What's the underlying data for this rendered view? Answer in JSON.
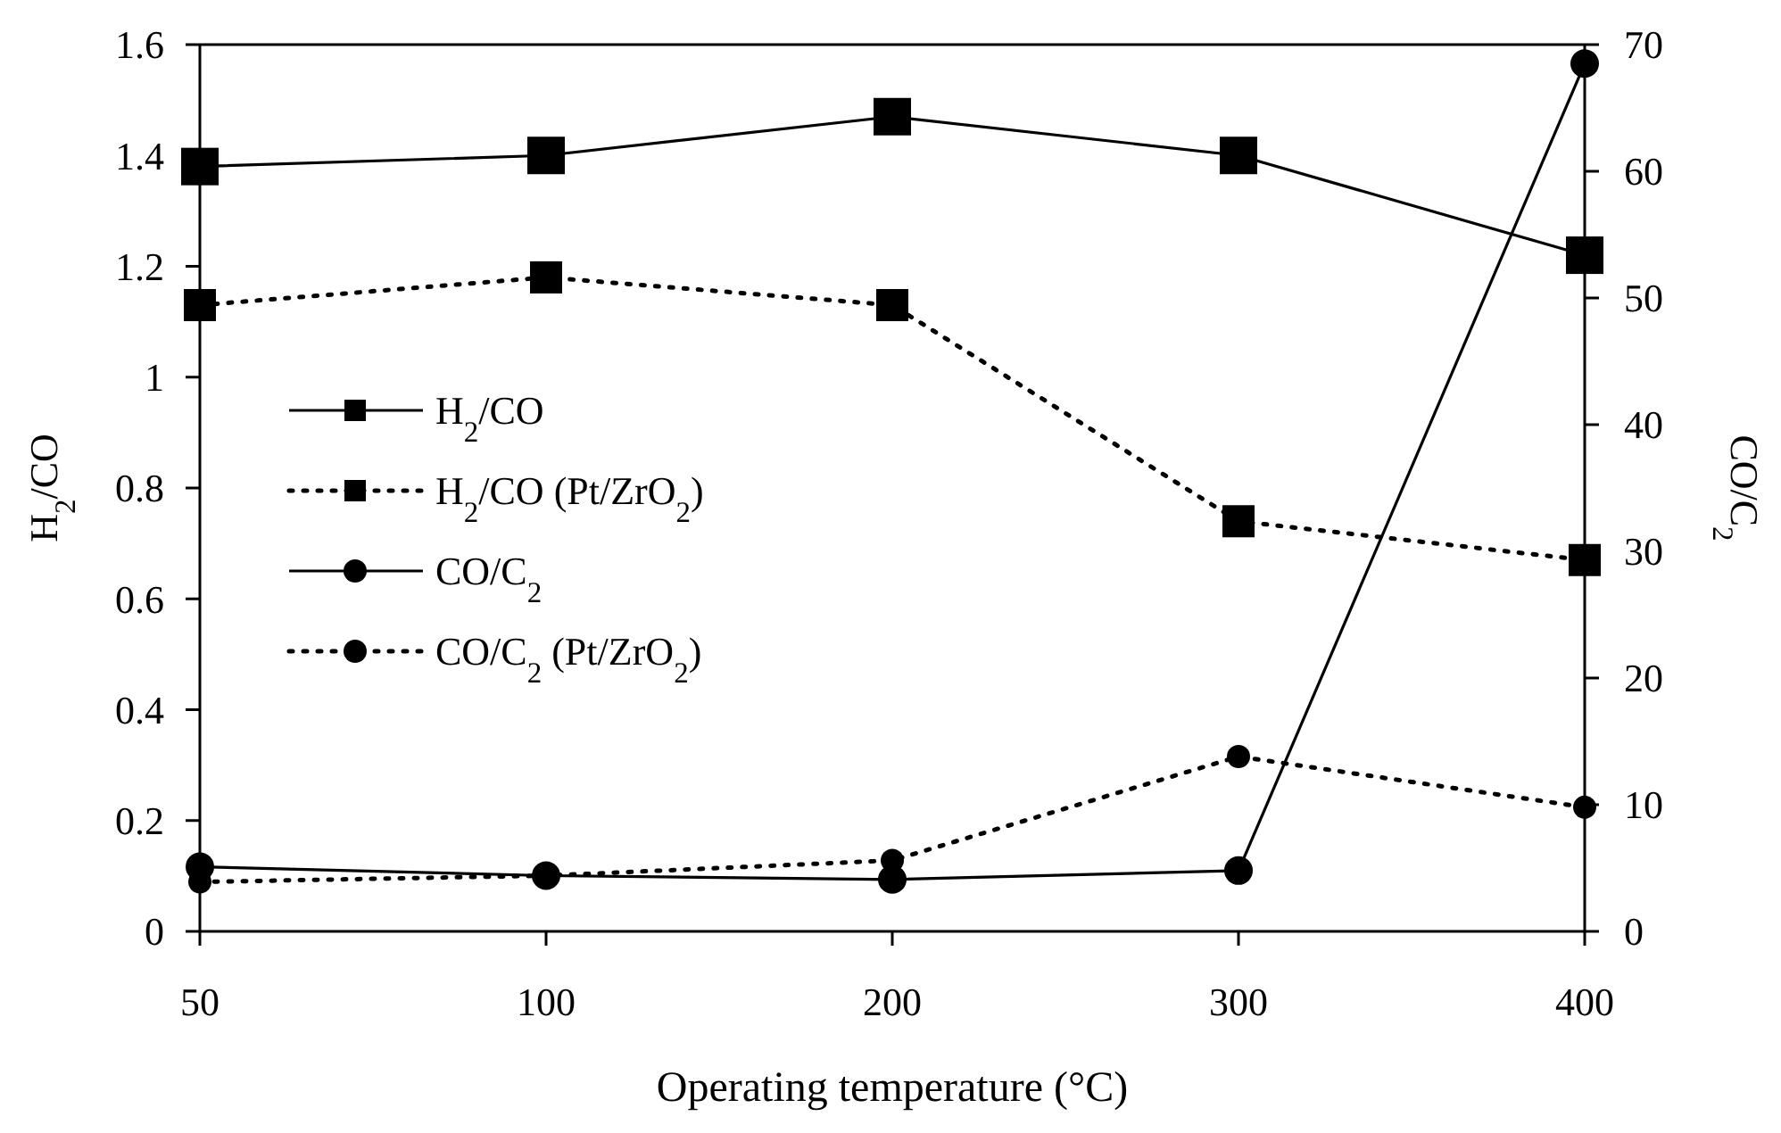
{
  "chart_data": {
    "type": "line",
    "xlabel": "Operating temperature (°C)",
    "ylabel": "H$_{2}$/CO",
    "y2label": "CO/C$_{2}$",
    "categories": [
      "50",
      "100",
      "200",
      "300",
      "400"
    ],
    "ylim": [
      0,
      1.6
    ],
    "yticks": [
      {
        "value": 0,
        "label": "0"
      },
      {
        "value": 0.2,
        "label": "0.2"
      },
      {
        "value": 0.4,
        "label": "0.4"
      },
      {
        "value": 0.6,
        "label": "0.6"
      },
      {
        "value": 0.8,
        "label": "0.8"
      },
      {
        "value": 1,
        "label": "1"
      },
      {
        "value": 1.2,
        "label": "1.2"
      },
      {
        "value": 1.4,
        "label": "1.4"
      },
      {
        "value": 1.6,
        "label": "1.6"
      }
    ],
    "y2lim": [
      0,
      70
    ],
    "y2ticks": [
      0,
      10,
      20,
      30,
      40,
      50,
      60,
      70
    ],
    "series": [
      {
        "name": "H$_{2}$/CO",
        "color": "#000000",
        "values": [
          1.38,
          1.4,
          1.47,
          1.4,
          1.22
        ],
        "marker": "square",
        "line_style": "solid"
      },
      {
        "name": "H$_{2}$/CO (Pt/ZrO$_{2}$)",
        "color": "#000000",
        "values": [
          1.13,
          1.18,
          1.13,
          0.74,
          0.67
        ],
        "marker": "square",
        "line_style": "dotted"
      },
      {
        "name": "CO/C$_{2}$",
        "color": "#000000",
        "values": [
          5.1,
          4.4,
          4.1,
          4.8,
          68.5
        ],
        "marker": "circle",
        "line_style": "solid",
        "axis": "y2"
      },
      {
        "name": "CO/C$_{2}$ (Pt/ZrO$_{2}$)",
        "color": "#000000",
        "values": [
          3.9,
          4.4,
          5.6,
          13.8,
          9.8
        ],
        "marker": "circle",
        "line_style": "dotted",
        "axis": "y2"
      }
    ],
    "grid": false,
    "legend": "left"
  }
}
